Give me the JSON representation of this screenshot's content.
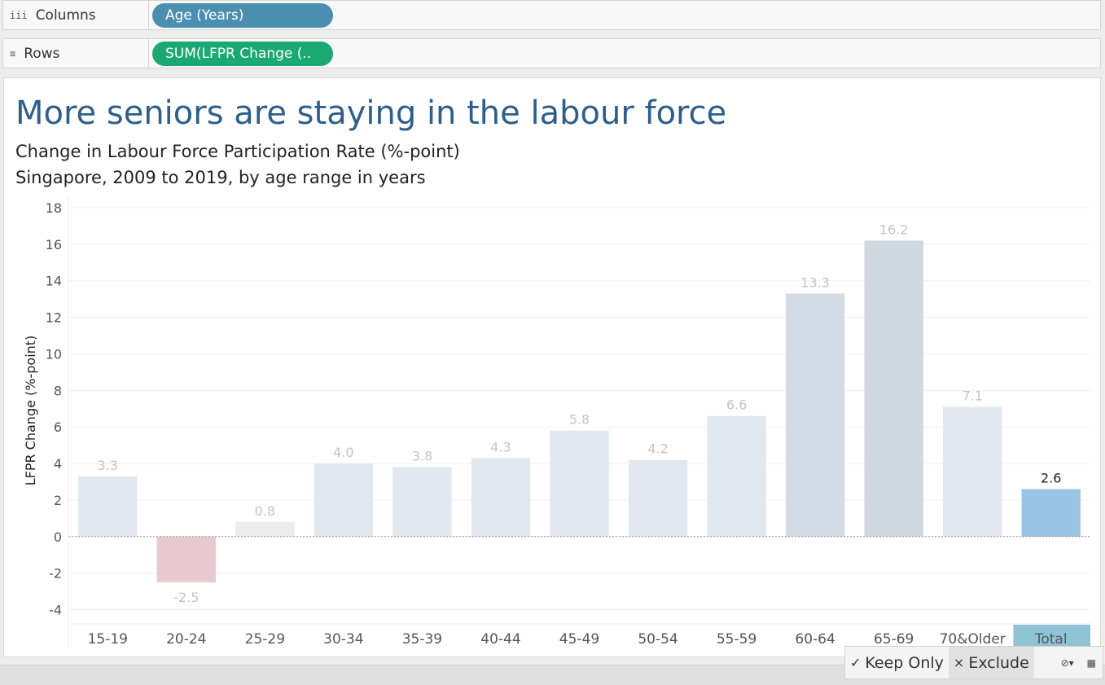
{
  "shelves": {
    "columns": {
      "icon": "columns-icon",
      "label": "Columns",
      "pill": "Age (Years)",
      "pill_color": "#4a8fb0"
    },
    "rows": {
      "icon": "rows-icon",
      "label": "Rows",
      "pill": "SUM(LFPR Change (..",
      "pill_color": "#1aa873"
    }
  },
  "header": {
    "title": "More seniors are staying in the labour force",
    "subtitle1": "Change in Labour Force Participation Rate (%-point)",
    "subtitle2": "Singapore, 2009 to 2019, by age range in years"
  },
  "chart_data": {
    "type": "bar",
    "categories": [
      "15-19",
      "20-24",
      "25-29",
      "30-34",
      "35-39",
      "40-44",
      "45-49",
      "50-54",
      "55-59",
      "60-64",
      "65-69",
      "70&Older",
      "Total"
    ],
    "values": [
      3.3,
      -2.5,
      0.8,
      4.0,
      3.8,
      4.3,
      5.8,
      4.2,
      6.6,
      13.3,
      16.2,
      7.1,
      2.6
    ],
    "data_labels": [
      "3.3",
      "-2.5",
      "0.8",
      "4.0",
      "3.8",
      "4.3",
      "5.8",
      "4.2",
      "6.6",
      "13.3",
      "16.2",
      "7.1",
      "2.6"
    ],
    "bar_colors": [
      "#e1e8ef",
      "#e8c9d2",
      "#ececec",
      "#e1e8ef",
      "#e1e8ef",
      "#e1e8ef",
      "#e1e8ef",
      "#e1e8ef",
      "#e1e8ef",
      "#d3dce5",
      "#d0d8e0",
      "#e1e8ef",
      "#9bc4e2"
    ],
    "highlighted_category": "Total",
    "highlight_label_color": "#222222",
    "dim_label_color": "#c4c4c4",
    "ylabel": "LFPR Change (%-point)",
    "xlabel": "",
    "ylim": [
      -4.6,
      18.4
    ],
    "yticks": [
      -4,
      -2,
      0,
      2,
      4,
      6,
      8,
      10,
      12,
      14,
      16,
      18
    ],
    "grid": true
  },
  "tooltip": {
    "keep_only": "Keep Only",
    "exclude": "Exclude",
    "keep_icon": "check-icon",
    "exclude_icon": "x-icon",
    "group_icon": "group-icon",
    "view_data_icon": "view-data-icon"
  }
}
